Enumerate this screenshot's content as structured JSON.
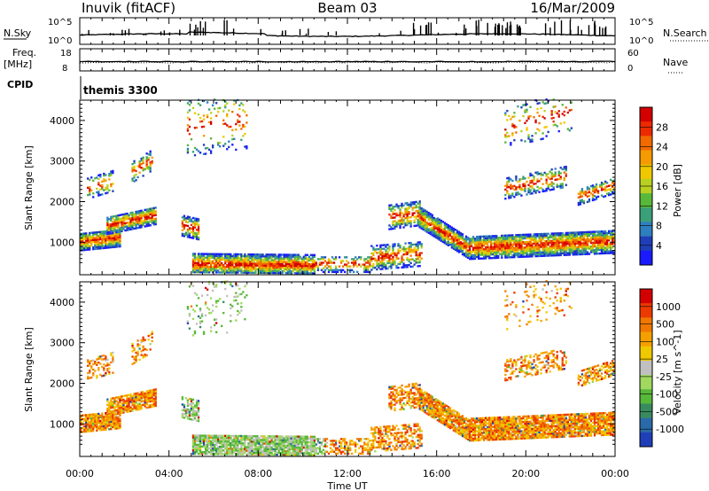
{
  "header": {
    "station": "Inuvik (fitACF)",
    "beam": "Beam 03",
    "date": "16/Mar/2009"
  },
  "noise_panel": {
    "left_label": "N.Sky",
    "right_label": "N.Search",
    "left_ticks": [
      "10^5",
      "10^0"
    ],
    "right_ticks": [
      "10^5",
      "10^0"
    ]
  },
  "freq_panel": {
    "left_label": "Freq.",
    "left_units": "[MHz]",
    "right_label": "Nave",
    "left_ticks": [
      "18",
      "8"
    ],
    "right_ticks": [
      "60",
      "0"
    ]
  },
  "cpid_panel": {
    "label": "CPID",
    "value": "themis 3300"
  },
  "chart_data": [
    {
      "type": "heatmap",
      "name": "power",
      "ylabel": "Slant Range [km]",
      "colorbar_label": "Power [dB]",
      "ylim": [
        200,
        4500
      ],
      "y_ticks": [
        1000,
        2000,
        3000,
        4000
      ],
      "colorbar_ticks": [
        "28",
        "24",
        "20",
        "16",
        "12",
        "8",
        "4"
      ],
      "colors": [
        "#1a1aff",
        "#1f3fb8",
        "#2e7fbf",
        "#3aa07a",
        "#58b83a",
        "#b8d020",
        "#f0c800",
        "#f59a00",
        "#f06a00",
        "#ec2a00",
        "#d40000"
      ]
    },
    {
      "type": "heatmap",
      "name": "velocity",
      "ylabel": "Slant Range [km]",
      "colorbar_label": "Velocity [m s^-1]",
      "ylim": [
        200,
        4500
      ],
      "y_ticks": [
        1000,
        2000,
        3000,
        4000
      ],
      "colorbar_ticks": [
        "1000",
        "500",
        "100",
        "25",
        "-25",
        "-100",
        "-500",
        "-1000"
      ],
      "colors": [
        "#1f3fb8",
        "#2a6aa8",
        "#3a8a60",
        "#58b83a",
        "#a0d860",
        "#c0c0c0",
        "#f0c800",
        "#f5a000",
        "#f07800",
        "#ec3a00",
        "#d40000"
      ]
    }
  ],
  "time_axis": {
    "xlabel": "Time UT",
    "ticks": [
      "00:00",
      "04:00",
      "08:00",
      "12:00",
      "16:00",
      "20:00",
      "00:00"
    ]
  }
}
